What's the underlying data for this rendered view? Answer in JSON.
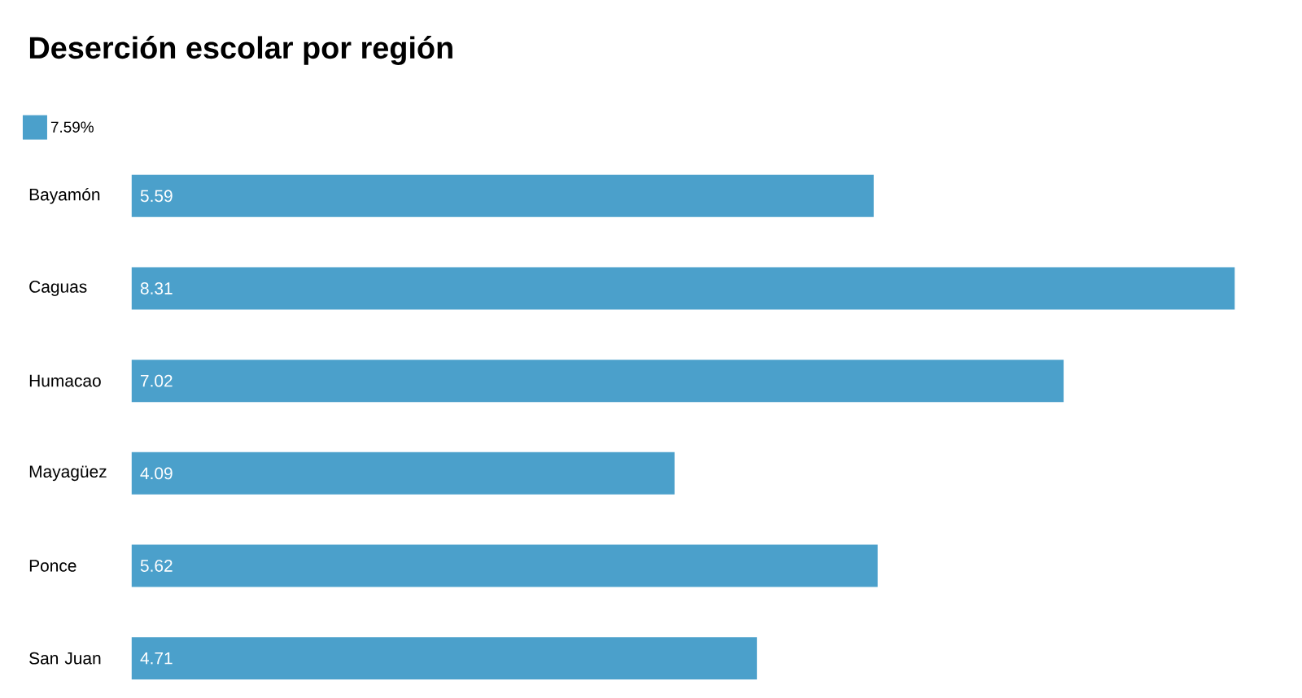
{
  "chart_data": {
    "type": "bar",
    "orientation": "horizontal",
    "title": "Deserción escolar por región",
    "categories": [
      "Bayamón",
      "Caguas",
      "Humacao",
      "Mayagüez",
      "Ponce",
      "San Juan"
    ],
    "series": [
      {
        "name": "7.59%",
        "color": "#4ba0cb",
        "values": [
          5.59,
          8.31,
          7.02,
          4.09,
          5.62,
          4.71
        ]
      }
    ],
    "data_labels": true,
    "legend": "top left"
  }
}
